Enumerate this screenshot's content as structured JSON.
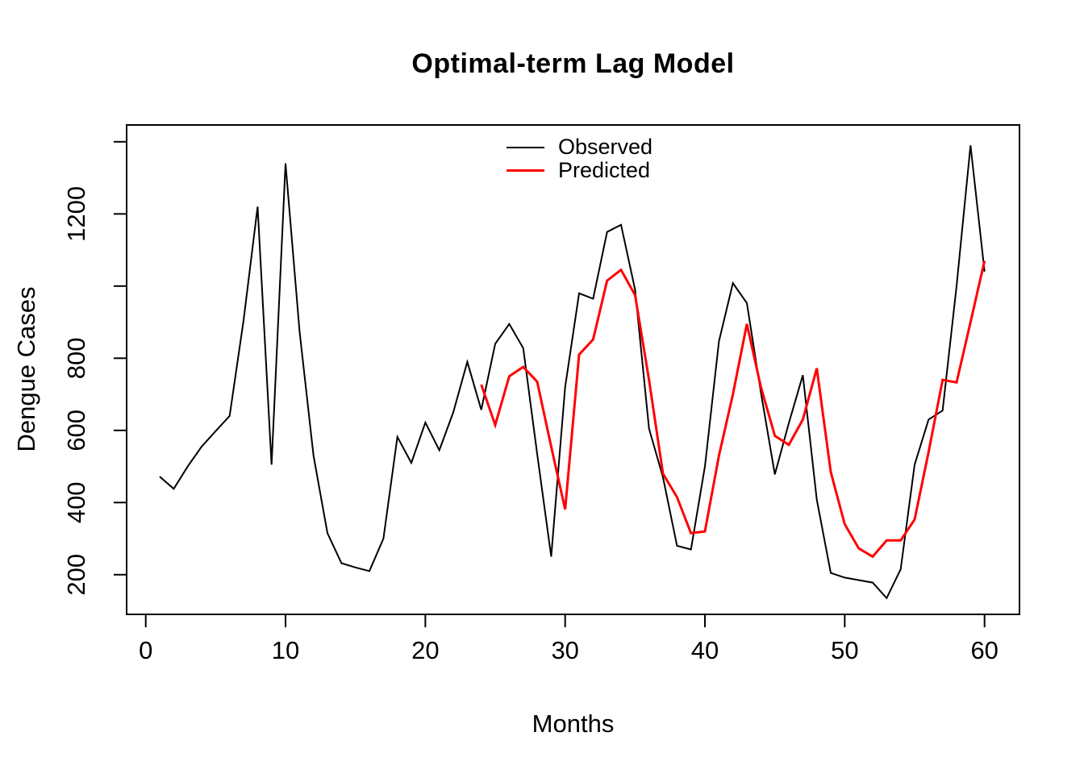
{
  "chart_data": {
    "type": "line",
    "title": "Optimal-term Lag Model",
    "xlabel": "Months",
    "ylabel": "Dengue Cases",
    "background_color": "#FFFFFF",
    "grid": false,
    "xlim": [
      0,
      62
    ],
    "ylim": [
      100,
      1450
    ],
    "x_ticks": [
      0,
      10,
      20,
      30,
      40,
      50,
      60
    ],
    "y_ticks": [
      {
        "value": 200,
        "label": "200"
      },
      {
        "value": 400,
        "label": "400"
      },
      {
        "value": 600,
        "label": "600"
      },
      {
        "value": 800,
        "label": "800"
      },
      {
        "value": 1000,
        "label": ""
      },
      {
        "value": 1200,
        "label": "1200"
      },
      {
        "value": 1400,
        "label": ""
      }
    ],
    "legend": {
      "position": "top-inside-center",
      "entries": [
        {
          "label": "Observed",
          "color": "#000000"
        },
        {
          "label": "Predicted",
          "color": "#FF0000"
        }
      ]
    },
    "series": [
      {
        "name": "Observed",
        "color": "#000000",
        "line_width": 2,
        "x": [
          1,
          2,
          3,
          4,
          5,
          6,
          7,
          8,
          9,
          10,
          11,
          12,
          13,
          14,
          15,
          16,
          17,
          18,
          19,
          20,
          21,
          22,
          23,
          24,
          25,
          26,
          27,
          28,
          29,
          30,
          31,
          32,
          33,
          34,
          35,
          36,
          37,
          38,
          39,
          40,
          41,
          42,
          43,
          44,
          45,
          46,
          47,
          48,
          49,
          50,
          51,
          52,
          53,
          54,
          55,
          56,
          57,
          58,
          59,
          60
        ],
        "y": [
          472,
          438,
          500,
          555,
          598,
          640,
          905,
          1220,
          505,
          1340,
          875,
          530,
          315,
          232,
          220,
          210,
          300,
          582,
          510,
          622,
          545,
          650,
          790,
          657,
          840,
          895,
          828,
          535,
          250,
          720,
          980,
          965,
          1150,
          1170,
          990,
          605,
          470,
          280,
          270,
          500,
          847,
          1008,
          953,
          705,
          478,
          620,
          753,
          408,
          205,
          192,
          185,
          178,
          135,
          215,
          505,
          630,
          655,
          1000,
          1390,
          1040
        ]
      },
      {
        "name": "Predicted",
        "color": "#FF0000",
        "line_width": 3,
        "x": [
          24,
          25,
          26,
          27,
          28,
          29,
          30,
          31,
          32,
          33,
          34,
          35,
          36,
          37,
          38,
          39,
          40,
          41,
          42,
          43,
          44,
          45,
          46,
          47,
          48,
          49,
          50,
          51,
          52,
          53,
          54,
          55,
          56,
          57,
          58,
          59,
          60
        ],
        "y": [
          727,
          615,
          750,
          776,
          735,
          555,
          381,
          810,
          852,
          1015,
          1045,
          975,
          740,
          480,
          415,
          315,
          320,
          530,
          700,
          895,
          720,
          585,
          560,
          630,
          772,
          485,
          340,
          273,
          250,
          295,
          295,
          353,
          540,
          740,
          733,
          900,
          1070
        ]
      }
    ]
  }
}
